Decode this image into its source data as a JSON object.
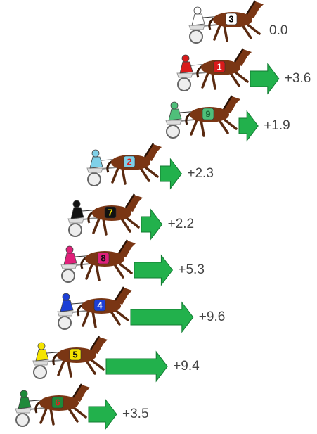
{
  "entries": [
    {
      "number": "3",
      "cloth": "#ffffff",
      "digit": "#000000",
      "gap": 0.0,
      "gap_label": "0.0"
    },
    {
      "number": "1",
      "cloth": "#d91a1a",
      "digit": "#ffffff",
      "gap": 3.6,
      "gap_label": "+3.6"
    },
    {
      "number": "9",
      "cloth": "#4fbf7a",
      "digit": "#1a6b3a",
      "gap": 1.9,
      "gap_label": "+1.9"
    },
    {
      "number": "2",
      "cloth": "#7fd0e8",
      "digit": "#e02020",
      "gap": 2.3,
      "gap_label": "+2.3"
    },
    {
      "number": "7",
      "cloth": "#111111",
      "digit": "#f5e400",
      "gap": 2.2,
      "gap_label": "+2.2"
    },
    {
      "number": "8",
      "cloth": "#e0207a",
      "digit": "#111111",
      "gap": 5.3,
      "gap_label": "+5.3"
    },
    {
      "number": "4",
      "cloth": "#1c3fd6",
      "digit": "#ffffff",
      "gap": 9.6,
      "gap_label": "+9.6"
    },
    {
      "number": "5",
      "cloth": "#f5e400",
      "digit": "#111111",
      "gap": 9.4,
      "gap_label": "+9.4"
    },
    {
      "number": "6",
      "cloth": "#1e8a3a",
      "digit": "#e02020",
      "gap": 3.5,
      "gap_label": "+3.5"
    }
  ]
}
